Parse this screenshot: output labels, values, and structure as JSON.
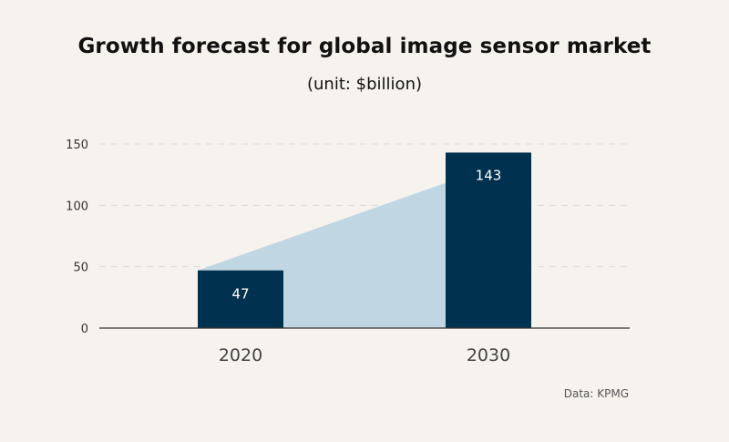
{
  "title": "Growth forecast for global image sensor market",
  "subtitle": "(unit: $billion)",
  "source": "Data: KPMG",
  "colors": {
    "bar": "#00314f",
    "area": "#c0d7e3",
    "grid": "#dcdcdc",
    "axis": "#333333",
    "bar_label": "#ffffff",
    "tick_label": "#333333",
    "category_label": "#444444"
  },
  "chart_data": {
    "type": "bar",
    "title": "Growth forecast for global image sensor market",
    "subtitle": "(unit: $billion)",
    "categories": [
      "2020",
      "2030"
    ],
    "values": [
      47,
      143
    ],
    "data_labels": [
      "47",
      "143"
    ],
    "yticks": [
      0,
      50,
      100,
      150
    ],
    "ylim": [
      0,
      150
    ],
    "xlabel": "",
    "ylabel": "",
    "grid": true,
    "growth_area": true,
    "source": "Data: KPMG"
  }
}
